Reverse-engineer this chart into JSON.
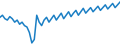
{
  "values": [
    62,
    65,
    60,
    58,
    63,
    60,
    55,
    58,
    52,
    55,
    50,
    48,
    40,
    25,
    30,
    65,
    55,
    50,
    58,
    62,
    55,
    60,
    65,
    58,
    63,
    68,
    60,
    65,
    70,
    63,
    68,
    72,
    65,
    70,
    75,
    68,
    72,
    76,
    70,
    74,
    78,
    72,
    76,
    80,
    74,
    78,
    82,
    76,
    80,
    84
  ],
  "line_color": "#1b7fc4",
  "background_color": "#ffffff",
  "linewidth": 1.1
}
